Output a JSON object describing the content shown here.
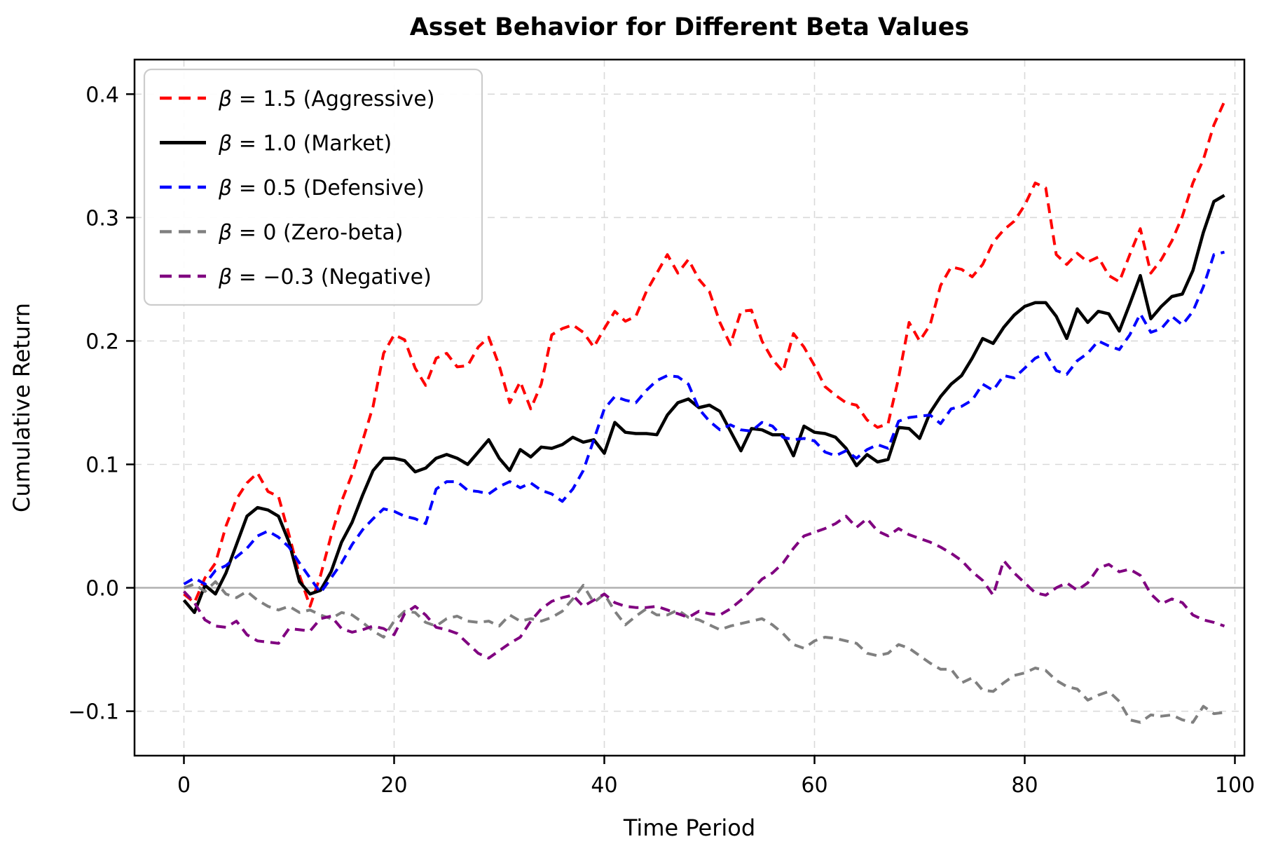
{
  "chart_data": {
    "type": "line",
    "title": "Asset Behavior for Different Beta Values",
    "xlabel": "Time Period",
    "ylabel": "Cumulative Return",
    "x_start": 0,
    "x_step": 1,
    "n_points": 100,
    "xlim": [
      -4.7,
      100.9
    ],
    "ylim": [
      -0.136,
      0.428
    ],
    "x_ticks": [
      0,
      20,
      40,
      60,
      80,
      100
    ],
    "y_ticks": [
      -0.1,
      0.0,
      0.1,
      0.2,
      0.3,
      0.4
    ],
    "grid": true,
    "zero_line": true,
    "legend_position": "upper-left",
    "colors": {
      "grid": "#d9d9d9",
      "zero_line": "#b0b0b0",
      "spine": "#000000",
      "text": "#000000",
      "legend_border": "#cccccc",
      "background": "#ffffff"
    },
    "series": [
      {
        "key": "aggressive",
        "name": "β = 1.5 (Aggressive)",
        "color": "#ff0000",
        "style": "dashed",
        "width": 4,
        "values": [
          -0.005,
          -0.012,
          0.008,
          0.02,
          0.05,
          0.072,
          0.085,
          0.093,
          0.078,
          0.074,
          0.043,
          0.01,
          -0.015,
          0.01,
          0.042,
          0.07,
          0.092,
          0.119,
          0.147,
          0.19,
          0.205,
          0.201,
          0.178,
          0.164,
          0.186,
          0.19,
          0.179,
          0.18,
          0.195,
          0.203,
          0.18,
          0.15,
          0.167,
          0.145,
          0.165,
          0.205,
          0.21,
          0.213,
          0.207,
          0.195,
          0.21,
          0.224,
          0.216,
          0.22,
          0.24,
          0.255,
          0.27,
          0.255,
          0.266,
          0.25,
          0.24,
          0.215,
          0.197,
          0.224,
          0.225,
          0.2,
          0.185,
          0.175,
          0.206,
          0.195,
          0.18,
          0.163,
          0.156,
          0.15,
          0.148,
          0.136,
          0.13,
          0.133,
          0.17,
          0.215,
          0.2,
          0.213,
          0.245,
          0.26,
          0.258,
          0.252,
          0.262,
          0.28,
          0.29,
          0.297,
          0.31,
          0.328,
          0.324,
          0.27,
          0.262,
          0.271,
          0.264,
          0.268,
          0.253,
          0.248,
          0.27,
          0.291,
          0.255,
          0.266,
          0.281,
          0.301,
          0.328,
          0.347,
          0.375,
          0.394
        ]
      },
      {
        "key": "market",
        "name": "β = 1.0 (Market)",
        "color": "#000000",
        "style": "solid",
        "width": 4.5,
        "values": [
          -0.01,
          -0.02,
          0.002,
          -0.005,
          0.012,
          0.035,
          0.058,
          0.065,
          0.063,
          0.058,
          0.037,
          0.005,
          -0.005,
          -0.002,
          0.013,
          0.037,
          0.053,
          0.075,
          0.095,
          0.105,
          0.105,
          0.103,
          0.094,
          0.097,
          0.105,
          0.108,
          0.105,
          0.1,
          0.11,
          0.12,
          0.105,
          0.095,
          0.112,
          0.106,
          0.114,
          0.113,
          0.116,
          0.122,
          0.118,
          0.12,
          0.109,
          0.134,
          0.126,
          0.125,
          0.125,
          0.124,
          0.14,
          0.15,
          0.153,
          0.146,
          0.148,
          0.143,
          0.127,
          0.111,
          0.129,
          0.128,
          0.124,
          0.124,
          0.107,
          0.131,
          0.126,
          0.125,
          0.122,
          0.113,
          0.099,
          0.108,
          0.102,
          0.104,
          0.13,
          0.129,
          0.121,
          0.142,
          0.155,
          0.165,
          0.172,
          0.186,
          0.202,
          0.198,
          0.211,
          0.221,
          0.228,
          0.231,
          0.231,
          0.22,
          0.202,
          0.226,
          0.215,
          0.224,
          0.222,
          0.208,
          0.23,
          0.253,
          0.218,
          0.228,
          0.236,
          0.238,
          0.257,
          0.288,
          0.313,
          0.318
        ]
      },
      {
        "key": "defensive",
        "name": "β = 0.5 (Defensive)",
        "color": "#0000ff",
        "style": "dashed",
        "width": 4,
        "values": [
          0.003,
          0.008,
          0.003,
          0.014,
          0.018,
          0.025,
          0.032,
          0.042,
          0.046,
          0.041,
          0.033,
          0.02,
          0.008,
          -0.004,
          0.008,
          0.02,
          0.035,
          0.047,
          0.056,
          0.064,
          0.062,
          0.058,
          0.056,
          0.052,
          0.08,
          0.086,
          0.086,
          0.079,
          0.078,
          0.076,
          0.082,
          0.086,
          0.081,
          0.085,
          0.079,
          0.076,
          0.07,
          0.08,
          0.095,
          0.12,
          0.145,
          0.155,
          0.152,
          0.15,
          0.16,
          0.168,
          0.172,
          0.171,
          0.165,
          0.145,
          0.135,
          0.128,
          0.132,
          0.128,
          0.127,
          0.134,
          0.131,
          0.122,
          0.12,
          0.121,
          0.119,
          0.11,
          0.107,
          0.111,
          0.105,
          0.112,
          0.116,
          0.113,
          0.135,
          0.138,
          0.139,
          0.14,
          0.133,
          0.145,
          0.147,
          0.152,
          0.165,
          0.16,
          0.172,
          0.17,
          0.178,
          0.186,
          0.19,
          0.176,
          0.173,
          0.184,
          0.19,
          0.2,
          0.196,
          0.193,
          0.205,
          0.222,
          0.207,
          0.21,
          0.22,
          0.213,
          0.224,
          0.244,
          0.27,
          0.272
        ]
      },
      {
        "key": "zero-beta",
        "name": "β = 0 (Zero-beta)",
        "color": "#808080",
        "style": "dashed",
        "width": 4,
        "values": [
          0.0,
          0.003,
          -0.003,
          0.005,
          -0.005,
          -0.008,
          -0.003,
          -0.01,
          -0.015,
          -0.018,
          -0.015,
          -0.02,
          -0.018,
          -0.022,
          -0.025,
          -0.02,
          -0.022,
          -0.028,
          -0.035,
          -0.04,
          -0.027,
          -0.019,
          -0.02,
          -0.028,
          -0.031,
          -0.025,
          -0.023,
          -0.027,
          -0.028,
          -0.027,
          -0.031,
          -0.022,
          -0.027,
          -0.025,
          -0.027,
          -0.024,
          -0.019,
          -0.009,
          0.002,
          -0.012,
          -0.005,
          -0.019,
          -0.03,
          -0.023,
          -0.017,
          -0.022,
          -0.022,
          -0.018,
          -0.024,
          -0.026,
          -0.03,
          -0.034,
          -0.031,
          -0.029,
          -0.027,
          -0.025,
          -0.03,
          -0.037,
          -0.046,
          -0.049,
          -0.043,
          -0.04,
          -0.041,
          -0.043,
          -0.045,
          -0.053,
          -0.055,
          -0.053,
          -0.046,
          -0.049,
          -0.055,
          -0.061,
          -0.066,
          -0.066,
          -0.077,
          -0.073,
          -0.083,
          -0.084,
          -0.077,
          -0.071,
          -0.069,
          -0.065,
          -0.067,
          -0.075,
          -0.08,
          -0.082,
          -0.091,
          -0.087,
          -0.084,
          -0.092,
          -0.107,
          -0.109,
          -0.103,
          -0.104,
          -0.103,
          -0.107,
          -0.109,
          -0.096,
          -0.102,
          -0.101
        ]
      },
      {
        "key": "negative",
        "name": "β = −0.3 (Negative)",
        "color": "#800080",
        "style": "dashed",
        "width": 4,
        "values": [
          -0.003,
          -0.012,
          -0.026,
          -0.031,
          -0.032,
          -0.027,
          -0.038,
          -0.043,
          -0.044,
          -0.045,
          -0.033,
          -0.034,
          -0.035,
          -0.025,
          -0.023,
          -0.033,
          -0.036,
          -0.034,
          -0.031,
          -0.033,
          -0.038,
          -0.021,
          -0.015,
          -0.022,
          -0.032,
          -0.034,
          -0.037,
          -0.045,
          -0.053,
          -0.057,
          -0.051,
          -0.045,
          -0.04,
          -0.027,
          -0.017,
          -0.011,
          -0.008,
          -0.006,
          -0.015,
          -0.01,
          -0.005,
          -0.012,
          -0.015,
          -0.016,
          -0.016,
          -0.015,
          -0.018,
          -0.021,
          -0.024,
          -0.019,
          -0.021,
          -0.022,
          -0.017,
          -0.01,
          -0.002,
          0.007,
          0.012,
          0.02,
          0.032,
          0.042,
          0.045,
          0.048,
          0.052,
          0.058,
          0.049,
          0.056,
          0.046,
          0.042,
          0.048,
          0.043,
          0.04,
          0.037,
          0.033,
          0.028,
          0.022,
          0.013,
          0.006,
          -0.006,
          0.022,
          0.012,
          0.004,
          -0.004,
          -0.006,
          0.0,
          0.004,
          -0.002,
          0.004,
          0.016,
          0.019,
          0.013,
          0.015,
          0.01,
          -0.005,
          -0.013,
          -0.009,
          -0.012,
          -0.022,
          -0.026,
          -0.028,
          -0.031
        ]
      }
    ]
  }
}
